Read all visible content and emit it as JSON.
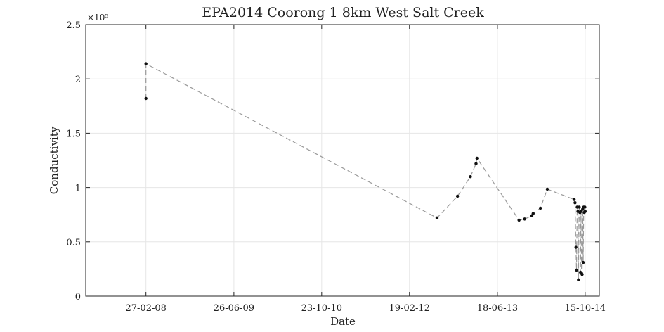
{
  "chart_data": {
    "type": "line",
    "title": "EPA2014 Coorong 1 8km West Salt Creek",
    "xlabel": "Date",
    "ylabel": "Conductivity",
    "y_exponent_label": "×10⁵",
    "xlim": [
      "2007-04-01",
      "2015-01-01"
    ],
    "ylim": [
      0,
      250000
    ],
    "grid": true,
    "x_tick_labels": [
      "27-02-08",
      "26-06-09",
      "23-10-10",
      "19-02-12",
      "18-06-13",
      "15-10-14"
    ],
    "y_tick_labels": [
      "0",
      "0.5",
      "1",
      "1.5",
      "2",
      "2.5"
    ],
    "series": [
      {
        "color": "#9a9a9a",
        "marker_color": "#111111",
        "line_style": "dashed",
        "points": [
          {
            "x": "2008-02-27",
            "y": 182000
          },
          {
            "x": "2008-02-27",
            "y": 214000
          },
          {
            "x": "2012-07-20",
            "y": 72000
          },
          {
            "x": "2012-11-10",
            "y": 92000
          },
          {
            "x": "2013-01-20",
            "y": 110000
          },
          {
            "x": "2013-02-20",
            "y": 122000
          },
          {
            "x": "2013-02-25",
            "y": 127000
          },
          {
            "x": "2013-10-15",
            "y": 70000
          },
          {
            "x": "2013-11-15",
            "y": 71000
          },
          {
            "x": "2013-12-25",
            "y": 74000
          },
          {
            "x": "2014-01-01",
            "y": 76000
          },
          {
            "x": "2014-02-10",
            "y": 81000
          },
          {
            "x": "2014-03-20",
            "y": 98500
          },
          {
            "x": "2014-08-15",
            "y": 89000
          },
          {
            "x": "2014-08-20",
            "y": 86000
          },
          {
            "x": "2014-08-25",
            "y": 45000
          },
          {
            "x": "2014-08-28",
            "y": 24000
          },
          {
            "x": "2014-09-01",
            "y": 82000
          },
          {
            "x": "2014-09-05",
            "y": 78000
          },
          {
            "x": "2014-09-08",
            "y": 15000
          },
          {
            "x": "2014-09-12",
            "y": 82000
          },
          {
            "x": "2014-09-16",
            "y": 77000
          },
          {
            "x": "2014-09-19",
            "y": 22000
          },
          {
            "x": "2014-09-22",
            "y": 78000
          },
          {
            "x": "2014-09-25",
            "y": 21000
          },
          {
            "x": "2014-09-28",
            "y": 20000
          },
          {
            "x": "2014-10-01",
            "y": 80000
          },
          {
            "x": "2014-10-04",
            "y": 31000
          },
          {
            "x": "2014-10-07",
            "y": 82000
          },
          {
            "x": "2014-10-10",
            "y": 77000
          },
          {
            "x": "2014-10-13",
            "y": 82000
          },
          {
            "x": "2014-10-15",
            "y": 78000
          }
        ]
      }
    ]
  }
}
